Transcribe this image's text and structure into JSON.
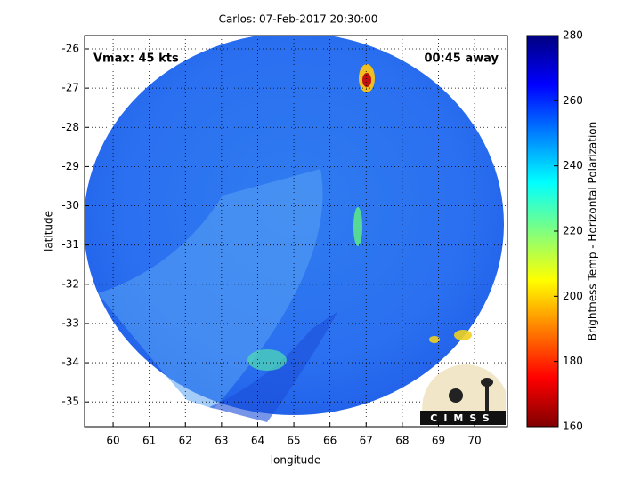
{
  "chart_data": {
    "type": "image",
    "title": "Carlos: 07-Feb-2017 20:30:00",
    "xlabel": "longitude",
    "ylabel": "latitude",
    "annotations": [
      "Vmax: 45 kts",
      "00:45 away"
    ],
    "logo": "CIMSS",
    "xlim": [
      59.21,
      70.91
    ],
    "xticks": [
      60,
      61,
      62,
      63,
      64,
      65,
      66,
      67,
      68,
      69,
      70
    ],
    "ylim": [
      -35.63,
      -25.66
    ],
    "yticks": [
      -26,
      -27,
      -28,
      -29,
      -30,
      -31,
      -32,
      -33,
      -34,
      -35
    ],
    "grid": true,
    "colorbar": {
      "label": "Brightness Temp - Horizontal Polarization",
      "lim": [
        160,
        280
      ],
      "ticks": [
        160,
        180,
        200,
        220,
        240,
        260,
        280
      ],
      "colormap": "jet"
    }
  }
}
